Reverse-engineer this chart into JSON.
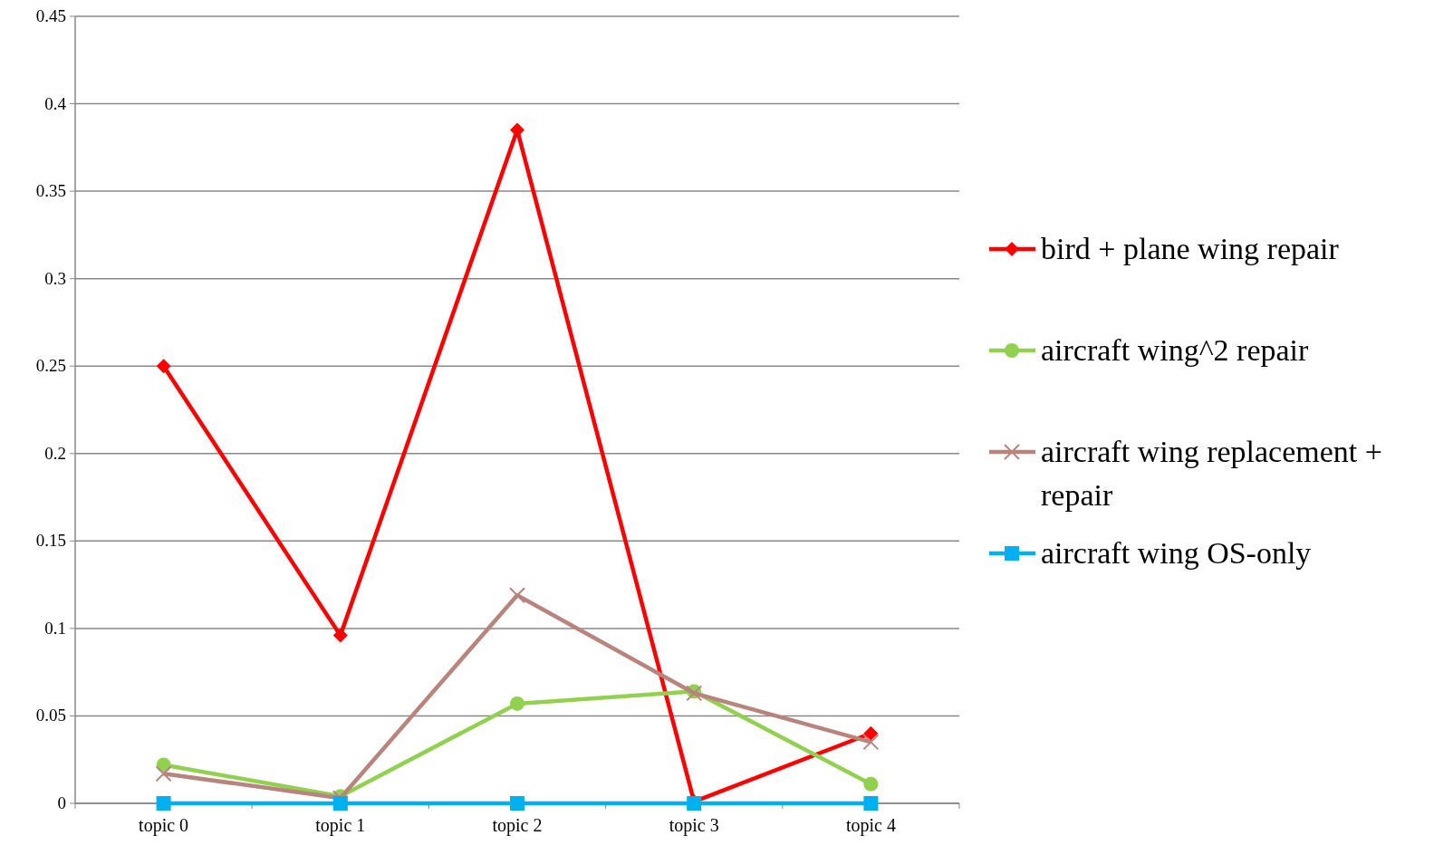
{
  "chart_data": {
    "type": "line",
    "categories": [
      "topic 0",
      "topic 1",
      "topic 2",
      "topic 3",
      "topic 4"
    ],
    "series": [
      {
        "name": "bird + plane wing repair",
        "color": "#ff0000",
        "marker": "diamond",
        "values": [
          0.25,
          0.096,
          0.385,
          0.001,
          0.04
        ]
      },
      {
        "name": "aircraft wing^2 repair",
        "color": "#92d050",
        "marker": "circle",
        "values": [
          0.022,
          0.004,
          0.057,
          0.064,
          0.011
        ]
      },
      {
        "name": "aircraft wing replacement + repair",
        "color": "#b7847e",
        "marker": "cross",
        "values": [
          0.017,
          0.003,
          0.119,
          0.063,
          0.035
        ]
      },
      {
        "name": "aircraft wing OS-only",
        "color": "#00b0f0",
        "marker": "square",
        "values": [
          0,
          0,
          0,
          0,
          0
        ]
      }
    ],
    "ylim": [
      0,
      0.45
    ],
    "yticks": [
      0,
      0.05,
      0.1,
      0.15,
      0.2,
      0.25,
      0.3,
      0.35,
      0.4,
      0.45
    ],
    "grid": "y",
    "legend": "right"
  }
}
